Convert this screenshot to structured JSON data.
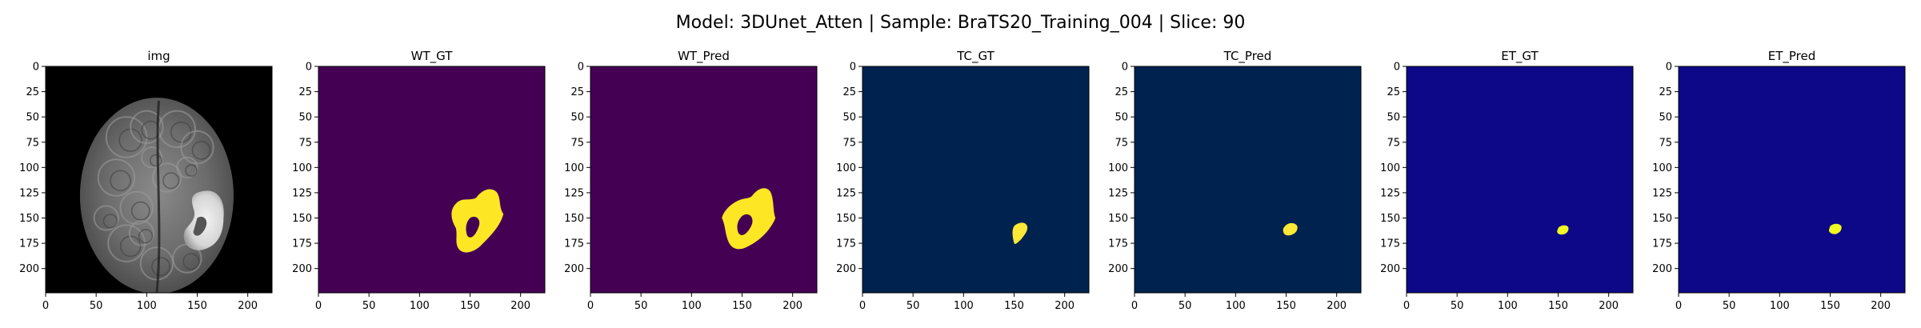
{
  "figure": {
    "title": "Model: 3DUnet_Atten | Sample: BraTS20_Training_004 | Slice: 90"
  },
  "axes": {
    "xticks": [
      "0",
      "50",
      "100",
      "150",
      "200"
    ],
    "yticks": [
      "0",
      "25",
      "50",
      "75",
      "100",
      "125",
      "150",
      "175",
      "200"
    ],
    "extent": [
      0,
      224
    ]
  },
  "panels": [
    {
      "title": "img",
      "kind": "mri",
      "background": "#000000",
      "foreground": "#cfcfcf"
    },
    {
      "title": "WT_GT",
      "kind": "mask",
      "background": "#440154",
      "foreground": "#fde725",
      "shape": "wt_gt"
    },
    {
      "title": "WT_Pred",
      "kind": "mask",
      "background": "#440154",
      "foreground": "#fde725",
      "shape": "wt_pred"
    },
    {
      "title": "TC_GT",
      "kind": "mask",
      "background": "#00224e",
      "foreground": "#fde737",
      "shape": "tc_gt"
    },
    {
      "title": "TC_Pred",
      "kind": "mask",
      "background": "#00224e",
      "foreground": "#fde737",
      "shape": "tc_pred"
    },
    {
      "title": "ET_GT",
      "kind": "mask",
      "background": "#0d0887",
      "foreground": "#f0f921",
      "shape": "et_gt"
    },
    {
      "title": "ET_Pred",
      "kind": "mask",
      "background": "#0d0887",
      "foreground": "#f0f921",
      "shape": "et_pred"
    }
  ]
}
